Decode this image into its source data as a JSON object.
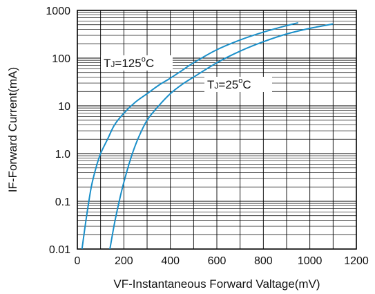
{
  "chart_data": {
    "type": "line",
    "title": "",
    "xlabel": "VF-Instantaneous Forward Valtage(mV)",
    "ylabel": "IF-Forward Current(mA)",
    "xlim": [
      0,
      1200
    ],
    "ylim": [
      0.01,
      1000
    ],
    "yscale": "log",
    "grid": true,
    "x_ticks": [
      "0",
      "200",
      "400",
      "600",
      "800",
      "1000",
      "1200"
    ],
    "y_ticks": [
      "0.01",
      "0.1",
      "1.0",
      "10",
      "100",
      "1000"
    ],
    "series": [
      {
        "name": "TJ=125°C",
        "color": "#1a8fc9",
        "x": [
          20,
          40,
          60,
          80,
          100,
          130,
          160,
          200,
          250,
          300,
          350,
          400,
          450,
          500,
          600,
          700,
          800,
          900,
          950
        ],
        "y": [
          0.01,
          0.05,
          0.2,
          0.5,
          1.0,
          2.0,
          4.0,
          7.0,
          12,
          18,
          27,
          38,
          55,
          80,
          150,
          240,
          350,
          480,
          550
        ]
      },
      {
        "name": "TJ=25°C",
        "color": "#1a8fc9",
        "x": [
          140,
          160,
          180,
          200,
          230,
          260,
          300,
          350,
          400,
          450,
          500,
          600,
          700,
          800,
          900,
          1000,
          1100
        ],
        "y": [
          0.01,
          0.035,
          0.1,
          0.25,
          0.8,
          2.0,
          5.0,
          10,
          18,
          28,
          40,
          80,
          140,
          220,
          320,
          420,
          520
        ]
      }
    ],
    "annotations": [
      {
        "label_parts": {
          "t": "T",
          "sub": "J",
          "eq": "=125",
          "deg": "o",
          "unit": "C"
        }
      },
      {
        "label_parts": {
          "t": "T",
          "sub": "J",
          "eq": "=25",
          "deg": "o",
          "unit": "C"
        }
      }
    ]
  }
}
